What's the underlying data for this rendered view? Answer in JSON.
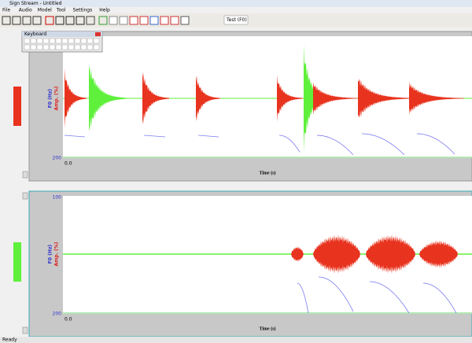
{
  "window": {
    "title": "Sign Stream - Untitled",
    "menu": [
      "File",
      "Audio",
      "Model",
      "Tool",
      "Settings",
      "Help"
    ]
  },
  "toolbar": {
    "combo": "Test (F0)"
  },
  "keyboard": {
    "title": "Keyboard"
  },
  "panels": [
    {
      "f0_label": "F0 (Hz)",
      "amp_label": "Amp. (%)",
      "x_label": "Time (s)",
      "x_start": "0.0",
      "y_top": "100",
      "y_bottom": "200"
    },
    {
      "f0_label": "F0 (Hz)",
      "amp_label": "Amp. (%)",
      "x_label": "Time (s)",
      "x_start": "0.0",
      "y_top": "100",
      "y_bottom": "200"
    }
  ],
  "status": {
    "left": "Ready"
  }
}
